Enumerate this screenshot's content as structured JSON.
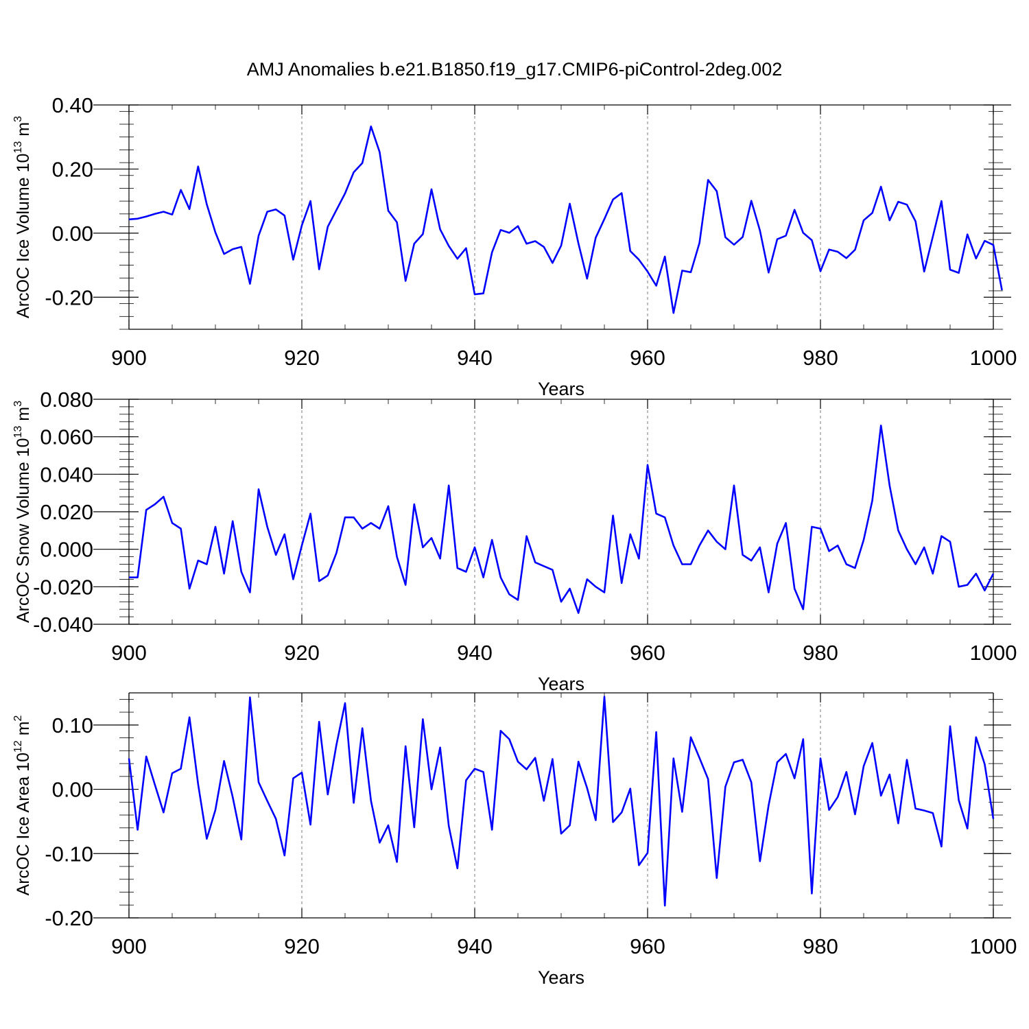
{
  "title": "AMJ Anomalies b.e21.B1850.f19_g17.CMIP6-piControl-2deg.002",
  "colors": {
    "series": "#0000ff",
    "axis": "#000000",
    "grid": "#7a7a7a"
  },
  "chart_data": [
    {
      "type": "line",
      "ylabel_main": "ArcOC Ice Volume 10",
      "ylabel_exp": "13",
      "ylabel_unit": " m",
      "ylabel_unit_exp": "3",
      "xlabel": "Years",
      "xlim": [
        900,
        1000
      ],
      "ylim": [
        -0.3,
        0.4
      ],
      "xticks": [
        900,
        920,
        940,
        960,
        980,
        1000
      ],
      "xtick_labels": [
        "900",
        "920",
        "940",
        "960",
        "980",
        "1000"
      ],
      "yticks": [
        -0.2,
        0.0,
        0.2,
        0.4
      ],
      "ytick_labels": [
        "-0.20",
        "0.00",
        "0.20",
        "0.40"
      ],
      "grid": "vertical-dashed",
      "x_start": 900,
      "values": [
        0.043,
        0.045,
        0.052,
        0.06,
        0.067,
        0.058,
        0.135,
        0.075,
        0.208,
        0.09,
        0.002,
        -0.065,
        -0.05,
        -0.043,
        -0.158,
        -0.008,
        0.067,
        0.074,
        0.055,
        -0.083,
        0.024,
        0.1,
        -0.113,
        0.02,
        0.072,
        0.124,
        0.19,
        0.219,
        0.333,
        0.253,
        0.07,
        0.034,
        -0.149,
        -0.033,
        -0.003,
        0.137,
        0.012,
        -0.04,
        -0.08,
        -0.047,
        -0.191,
        -0.188,
        -0.06,
        0.01,
        0.001,
        0.022,
        -0.033,
        -0.025,
        -0.043,
        -0.093,
        -0.039,
        0.092,
        -0.032,
        -0.142,
        -0.014,
        0.044,
        0.105,
        0.125,
        -0.056,
        -0.083,
        -0.12,
        -0.164,
        -0.073,
        -0.249,
        -0.117,
        -0.122,
        -0.031,
        0.166,
        0.131,
        -0.013,
        -0.036,
        -0.012,
        0.101,
        0.008,
        -0.123,
        -0.019,
        -0.008,
        0.073,
        0.001,
        -0.022,
        -0.119,
        -0.051,
        -0.058,
        -0.078,
        -0.052,
        0.04,
        0.063,
        0.145,
        0.04,
        0.098,
        0.089,
        0.037,
        -0.12,
        -0.011,
        0.1,
        -0.114,
        -0.124,
        -0.004,
        -0.079,
        -0.024,
        -0.037,
        -0.178
      ]
    },
    {
      "type": "line",
      "ylabel_main": "ArcOC Snow Volume 10",
      "ylabel_exp": "13",
      "ylabel_unit": " m",
      "ylabel_unit_exp": "3",
      "xlabel": "Years",
      "xlim": [
        900,
        1000
      ],
      "ylim": [
        -0.04,
        0.08
      ],
      "xticks": [
        900,
        920,
        940,
        960,
        980,
        1000
      ],
      "xtick_labels": [
        "900",
        "920",
        "940",
        "960",
        "980",
        "1000"
      ],
      "yticks": [
        -0.04,
        -0.02,
        0.0,
        0.02,
        0.04,
        0.06,
        0.08
      ],
      "ytick_labels": [
        "-0.040",
        "-0.020",
        "0.000",
        "0.020",
        "0.040",
        "0.060",
        "0.080"
      ],
      "grid": "vertical-dashed",
      "x_start": 900,
      "values": [
        -0.015,
        -0.015,
        0.021,
        0.024,
        0.028,
        0.014,
        0.011,
        -0.021,
        -0.006,
        -0.008,
        0.012,
        -0.013,
        0.015,
        -0.012,
        -0.023,
        0.032,
        0.012,
        -0.003,
        0.008,
        -0.016,
        0.002,
        0.019,
        -0.017,
        -0.014,
        -0.002,
        0.017,
        0.017,
        0.011,
        0.014,
        0.011,
        0.023,
        -0.004,
        -0.019,
        0.024,
        0.001,
        0.006,
        -0.005,
        0.034,
        -0.01,
        -0.012,
        0.001,
        -0.015,
        0.005,
        -0.015,
        -0.024,
        -0.027,
        0.007,
        -0.007,
        -0.009,
        -0.011,
        -0.028,
        -0.021,
        -0.034,
        -0.016,
        -0.02,
        -0.023,
        0.018,
        -0.018,
        0.008,
        -0.005,
        0.045,
        0.019,
        0.017,
        0.002,
        -0.008,
        -0.008,
        0.002,
        0.01,
        0.004,
        0.0,
        0.034,
        -0.003,
        -0.006,
        0.001,
        -0.023,
        0.003,
        0.014,
        -0.021,
        -0.032,
        0.012,
        0.011,
        -0.001,
        0.002,
        -0.008,
        -0.01,
        0.005,
        0.026,
        0.066,
        0.034,
        0.01,
        0.0,
        -0.008,
        0.001,
        -0.013,
        0.007,
        0.004,
        -0.02,
        -0.019,
        -0.013,
        -0.022,
        -0.013
      ]
    },
    {
      "type": "line",
      "ylabel_main": "ArcOC Ice Area 10",
      "ylabel_exp": "12",
      "ylabel_unit": " m",
      "ylabel_unit_exp": "2",
      "xlabel": "Years",
      "xlim": [
        900,
        1000
      ],
      "ylim": [
        -0.2,
        0.15
      ],
      "xticks": [
        900,
        920,
        940,
        960,
        980,
        1000
      ],
      "xtick_labels": [
        "900",
        "920",
        "940",
        "960",
        "980",
        "1000"
      ],
      "yticks": [
        -0.2,
        -0.1,
        0.0,
        0.1
      ],
      "ytick_labels": [
        "-0.20",
        "-0.10",
        "0.00",
        "0.10"
      ],
      "grid": "vertical-dashed",
      "x_start": 900,
      "values": [
        0.048,
        -0.063,
        0.051,
        0.007,
        -0.036,
        0.025,
        0.032,
        0.112,
        0.008,
        -0.077,
        -0.032,
        0.044,
        -0.012,
        -0.078,
        0.143,
        0.011,
        -0.018,
        -0.046,
        -0.103,
        0.017,
        0.026,
        -0.055,
        0.105,
        -0.008,
        0.069,
        0.134,
        -0.021,
        0.095,
        -0.018,
        -0.083,
        -0.056,
        -0.113,
        0.067,
        -0.059,
        0.109,
        0.0,
        0.065,
        -0.057,
        -0.123,
        0.014,
        0.032,
        0.027,
        -0.063,
        0.091,
        0.078,
        0.043,
        0.031,
        0.049,
        -0.018,
        0.047,
        -0.069,
        -0.056,
        0.043,
        0.002,
        -0.048,
        0.144,
        -0.051,
        -0.036,
        0.001,
        -0.118,
        -0.099,
        0.089,
        -0.181,
        0.048,
        -0.035,
        0.081,
        0.049,
        0.016,
        -0.138,
        0.004,
        0.042,
        0.046,
        0.011,
        -0.112,
        -0.025,
        0.042,
        0.055,
        0.017,
        0.078,
        -0.162,
        0.048,
        -0.032,
        -0.012,
        0.027,
        -0.039,
        0.036,
        0.072,
        -0.01,
        0.023,
        -0.053,
        0.046,
        -0.03,
        -0.033,
        -0.037,
        -0.089,
        0.098,
        -0.017,
        -0.061,
        0.081,
        0.039,
        -0.046
      ]
    }
  ]
}
